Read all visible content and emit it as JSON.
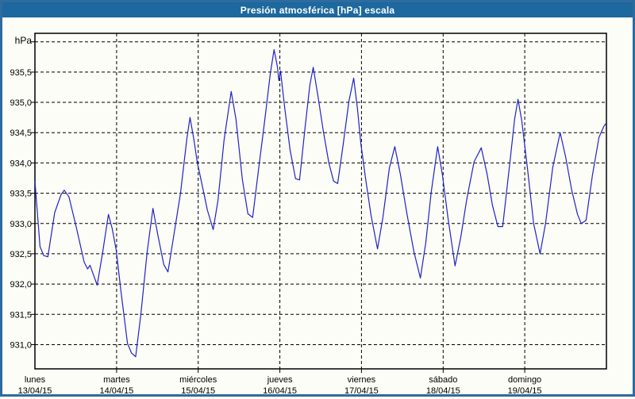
{
  "window": {
    "title": "Presión atmosférica [hPa] escala"
  },
  "colors": {
    "title_bar_bg": "#1d689e",
    "title_text": "#ffffff",
    "window_border": "#2e6b9f",
    "background": "#fbfdf6",
    "line": "#2222c8",
    "grid": "#000000",
    "axis_text": "#000000"
  },
  "chart_data": {
    "type": "line",
    "title": "Presión atmosférica [hPa] escala",
    "ylabel": "hPa",
    "xlabel": "",
    "grid": "dashed",
    "legend": "none",
    "ylim": [
      930.6,
      936.14
    ],
    "y_gridlines": [
      936.0,
      935.5,
      935.0,
      934.5,
      934.0,
      933.5,
      933.0,
      932.5,
      932.0,
      931.5,
      931.0
    ],
    "y_tick_labels": [
      {
        "value": 935.5,
        "label": "935,5"
      },
      {
        "value": 935.0,
        "label": "935,0"
      },
      {
        "value": 934.5,
        "label": "934,5"
      },
      {
        "value": 934.0,
        "label": "934,0"
      },
      {
        "value": 933.5,
        "label": "933,5"
      },
      {
        "value": 933.0,
        "label": "933,0"
      },
      {
        "value": 932.5,
        "label": "932,5"
      },
      {
        "value": 932.0,
        "label": "932,0"
      },
      {
        "value": 931.5,
        "label": "931,5"
      },
      {
        "value": 931.0,
        "label": "931,0"
      }
    ],
    "x_axis": {
      "span_hours": 168,
      "day_ticks": [
        {
          "name": "lunes",
          "date": "13/04/15",
          "hour": 0
        },
        {
          "name": "martes",
          "date": "14/04/15",
          "hour": 24
        },
        {
          "name": "miércoles",
          "date": "15/04/15",
          "hour": 48
        },
        {
          "name": "jueves",
          "date": "16/04/15",
          "hour": 72
        },
        {
          "name": "viernes",
          "date": "17/04/15",
          "hour": 96
        },
        {
          "name": "sábado",
          "date": "18/04/15",
          "hour": 120
        },
        {
          "name": "domingo",
          "date": "19/04/15",
          "hour": 144
        }
      ]
    },
    "series": [
      {
        "name": "Presión atmosférica",
        "unit": "hPa",
        "color": "#2222c8",
        "points": [
          [
            0,
            933.7
          ],
          [
            1.5,
            932.62
          ],
          [
            2.6,
            932.47
          ],
          [
            3.8,
            932.45
          ],
          [
            5.8,
            933.18
          ],
          [
            7.7,
            933.48
          ],
          [
            8.6,
            933.55
          ],
          [
            10,
            933.44
          ],
          [
            12.1,
            932.95
          ],
          [
            14.5,
            932.36
          ],
          [
            15.5,
            932.25
          ],
          [
            16.2,
            932.31
          ],
          [
            17.3,
            932.14
          ],
          [
            18.3,
            931.98
          ],
          [
            19.9,
            932.52
          ],
          [
            21.6,
            933.15
          ],
          [
            22.7,
            932.92
          ],
          [
            23.9,
            932.56
          ],
          [
            25.3,
            931.88
          ],
          [
            27.2,
            931.02
          ],
          [
            28.4,
            930.86
          ],
          [
            29.6,
            930.8
          ],
          [
            31.1,
            931.48
          ],
          [
            33,
            932.53
          ],
          [
            34.7,
            933.25
          ],
          [
            36.1,
            932.82
          ],
          [
            37.9,
            932.32
          ],
          [
            39.1,
            932.2
          ],
          [
            40.9,
            932.83
          ],
          [
            42.8,
            933.5
          ],
          [
            44.7,
            934.42
          ],
          [
            45.6,
            934.75
          ],
          [
            46.8,
            934.36
          ],
          [
            47.7,
            934.02
          ],
          [
            49.1,
            933.65
          ],
          [
            50.7,
            933.22
          ],
          [
            52.4,
            932.9
          ],
          [
            53.8,
            933.38
          ],
          [
            55.6,
            934.38
          ],
          [
            57.7,
            935.18
          ],
          [
            59.1,
            934.72
          ],
          [
            61,
            933.72
          ],
          [
            62.6,
            933.16
          ],
          [
            64,
            933.1
          ],
          [
            65.7,
            933.88
          ],
          [
            67.5,
            934.68
          ],
          [
            69.2,
            935.48
          ],
          [
            70.3,
            935.87
          ],
          [
            71.3,
            935.58
          ],
          [
            71.7,
            935.36
          ],
          [
            72.2,
            935.52
          ],
          [
            73.4,
            934.92
          ],
          [
            75,
            934.22
          ],
          [
            76.6,
            933.74
          ],
          [
            77.8,
            933.72
          ],
          [
            79.4,
            934.58
          ],
          [
            80.8,
            935.28
          ],
          [
            81.8,
            935.58
          ],
          [
            83.2,
            935.1
          ],
          [
            84.8,
            934.52
          ],
          [
            86.4,
            934.0
          ],
          [
            87.8,
            933.7
          ],
          [
            89,
            933.66
          ],
          [
            90.6,
            934.3
          ],
          [
            92.3,
            935.02
          ],
          [
            93.7,
            935.4
          ],
          [
            94.8,
            934.9
          ],
          [
            95.8,
            934.32
          ],
          [
            97.2,
            933.74
          ],
          [
            98.8,
            933.14
          ],
          [
            100.7,
            932.58
          ],
          [
            102.3,
            933.1
          ],
          [
            104.2,
            933.92
          ],
          [
            105.8,
            934.27
          ],
          [
            107.4,
            933.82
          ],
          [
            109.3,
            933.18
          ],
          [
            111.4,
            932.54
          ],
          [
            113.3,
            932.1
          ],
          [
            114.9,
            932.68
          ],
          [
            116.5,
            933.52
          ],
          [
            118.4,
            934.27
          ],
          [
            119.8,
            933.8
          ],
          [
            121.4,
            933.1
          ],
          [
            123.5,
            932.3
          ],
          [
            125.2,
            932.78
          ],
          [
            127,
            933.42
          ],
          [
            129.1,
            934.02
          ],
          [
            131.2,
            934.25
          ],
          [
            132.9,
            933.82
          ],
          [
            134.5,
            933.3
          ],
          [
            136.1,
            932.95
          ],
          [
            137.5,
            932.95
          ],
          [
            139.6,
            934.0
          ],
          [
            141,
            934.72
          ],
          [
            142,
            935.05
          ],
          [
            143.1,
            934.7
          ],
          [
            144.8,
            933.9
          ],
          [
            146.6,
            933.0
          ],
          [
            148.5,
            932.5
          ],
          [
            150.1,
            933.0
          ],
          [
            152.2,
            933.92
          ],
          [
            154.4,
            934.5
          ],
          [
            156,
            934.1
          ],
          [
            157.8,
            933.55
          ],
          [
            159.5,
            933.15
          ],
          [
            160.6,
            933.0
          ],
          [
            162,
            933.05
          ],
          [
            163.9,
            933.8
          ],
          [
            165.8,
            934.42
          ],
          [
            167.2,
            934.6
          ],
          [
            167.8,
            934.65
          ]
        ]
      }
    ]
  }
}
